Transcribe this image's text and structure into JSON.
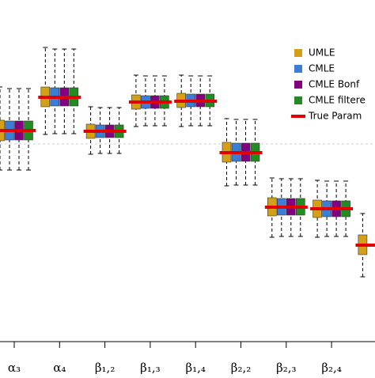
{
  "chart_data": {
    "type": "box",
    "categories": [
      "α₃",
      "α₄",
      "β₁,₂",
      "β₁,₃",
      "β₁,₄",
      "β₂,₂",
      "β₂,₃",
      "β₂,₄",
      null
    ],
    "ylim": [
      -2.5,
      1.82
    ],
    "reference_line": 0,
    "legend": "right",
    "series": [
      {
        "name": "UMLE",
        "color": "#d4a017",
        "boxes": [
          {
            "low": -0.33,
            "q1": 0.04,
            "median": 0.17,
            "q3": 0.3,
            "high": 0.72
          },
          {
            "low": 0.12,
            "q1": 0.47,
            "median": 0.59,
            "q3": 0.72,
            "high": 1.22
          },
          {
            "low": -0.13,
            "q1": 0.07,
            "median": 0.16,
            "q3": 0.25,
            "high": 0.47
          },
          {
            "low": 0.22,
            "q1": 0.44,
            "median": 0.53,
            "q3": 0.62,
            "high": 0.87
          },
          {
            "low": 0.22,
            "q1": 0.46,
            "median": 0.54,
            "q3": 0.64,
            "high": 0.87
          },
          {
            "low": -0.53,
            "q1": -0.23,
            "median": -0.11,
            "q3": 0.02,
            "high": 0.32
          },
          {
            "low": -1.18,
            "q1": -0.91,
            "median": -0.8,
            "q3": -0.68,
            "high": -0.43
          },
          {
            "low": -1.18,
            "q1": -0.93,
            "median": -0.82,
            "q3": -0.71,
            "high": -0.46
          },
          {
            "low": -1.68,
            "q1": -1.4,
            "median": -1.28,
            "q3": -1.15,
            "high": -0.88
          }
        ]
      },
      {
        "name": "CMLE",
        "color": "#3a7fd5",
        "boxes": [
          {
            "low": -0.33,
            "q1": 0.05,
            "median": 0.17,
            "q3": 0.29,
            "high": 0.7
          },
          {
            "low": 0.13,
            "q1": 0.48,
            "median": 0.59,
            "q3": 0.71,
            "high": 1.2
          },
          {
            "low": -0.12,
            "q1": 0.08,
            "median": 0.16,
            "q3": 0.24,
            "high": 0.46
          },
          {
            "low": 0.23,
            "q1": 0.45,
            "median": 0.53,
            "q3": 0.61,
            "high": 0.86
          },
          {
            "low": 0.23,
            "q1": 0.47,
            "median": 0.54,
            "q3": 0.63,
            "high": 0.86
          },
          {
            "low": -0.52,
            "q1": -0.22,
            "median": -0.11,
            "q3": 0.01,
            "high": 0.31
          },
          {
            "low": -1.17,
            "q1": -0.9,
            "median": -0.8,
            "q3": -0.69,
            "high": -0.44
          },
          {
            "low": -1.17,
            "q1": -0.92,
            "median": -0.82,
            "q3": -0.72,
            "high": -0.47
          }
        ]
      },
      {
        "name": "CMLE Bonf",
        "color": "#800080",
        "boxes": [
          {
            "low": -0.33,
            "q1": 0.05,
            "median": 0.17,
            "q3": 0.29,
            "high": 0.7
          },
          {
            "low": 0.13,
            "q1": 0.48,
            "median": 0.59,
            "q3": 0.71,
            "high": 1.2
          },
          {
            "low": -0.12,
            "q1": 0.08,
            "median": 0.16,
            "q3": 0.24,
            "high": 0.46
          },
          {
            "low": 0.23,
            "q1": 0.45,
            "median": 0.53,
            "q3": 0.61,
            "high": 0.86
          },
          {
            "low": 0.23,
            "q1": 0.47,
            "median": 0.54,
            "q3": 0.63,
            "high": 0.86
          },
          {
            "low": -0.52,
            "q1": -0.22,
            "median": -0.11,
            "q3": 0.01,
            "high": 0.31
          },
          {
            "low": -1.17,
            "q1": -0.9,
            "median": -0.8,
            "q3": -0.69,
            "high": -0.44
          },
          {
            "low": -1.17,
            "q1": -0.92,
            "median": -0.82,
            "q3": -0.72,
            "high": -0.47
          }
        ]
      },
      {
        "name": "CMLE filtere",
        "color": "#228b22",
        "boxes": [
          {
            "low": -0.33,
            "q1": 0.05,
            "median": 0.17,
            "q3": 0.29,
            "high": 0.7
          },
          {
            "low": 0.13,
            "q1": 0.48,
            "median": 0.59,
            "q3": 0.71,
            "high": 1.2
          },
          {
            "low": -0.12,
            "q1": 0.08,
            "median": 0.16,
            "q3": 0.24,
            "high": 0.46
          },
          {
            "low": 0.23,
            "q1": 0.45,
            "median": 0.53,
            "q3": 0.61,
            "high": 0.86
          },
          {
            "low": 0.23,
            "q1": 0.47,
            "median": 0.54,
            "q3": 0.63,
            "high": 0.86
          },
          {
            "low": -0.52,
            "q1": -0.22,
            "median": -0.11,
            "q3": 0.01,
            "high": 0.31
          },
          {
            "low": -1.17,
            "q1": -0.9,
            "median": -0.8,
            "q3": -0.69,
            "high": -0.44
          },
          {
            "low": -1.17,
            "q1": -0.92,
            "median": -0.82,
            "q3": -0.72,
            "high": -0.47
          }
        ]
      }
    ],
    "true_param": {
      "name": "True Param",
      "color": "#e00000",
      "values": [
        0.17,
        0.59,
        0.16,
        0.53,
        0.54,
        -0.11,
        -0.8,
        -0.82,
        -1.28
      ]
    }
  }
}
